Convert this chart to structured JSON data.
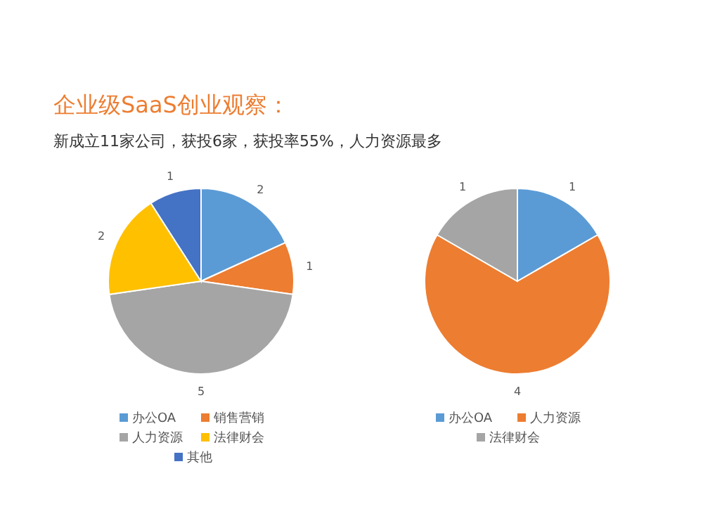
{
  "chart_data": [
    {
      "type": "pie",
      "title": "企业级SaaS创业观察：",
      "subtitle": "新成立11家公司，获投6家，获投率55%，人力资源最多",
      "categories": [
        "办公OA",
        "销售营销",
        "人力资源",
        "法律财会",
        "其他"
      ],
      "values": [
        2,
        1,
        5,
        2,
        1
      ],
      "colors": [
        "#5b9bd5",
        "#ed7d31",
        "#a5a5a5",
        "#ffc000",
        "#4472c4"
      ],
      "data_labels": true,
      "legend": "bottom"
    },
    {
      "type": "pie",
      "categories": [
        "办公OA",
        "人力资源",
        "法律财会"
      ],
      "values": [
        1,
        4,
        1
      ],
      "colors": [
        "#5b9bd5",
        "#ed7d31",
        "#a5a5a5"
      ],
      "data_labels": true,
      "legend": "bottom"
    }
  ]
}
